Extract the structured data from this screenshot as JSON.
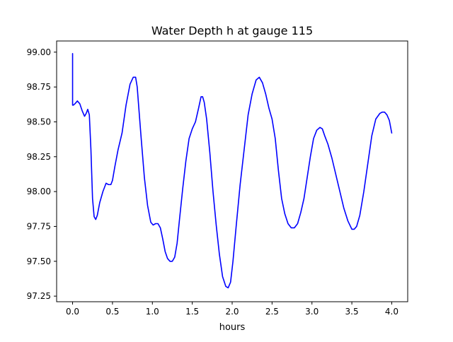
{
  "chart_data": {
    "type": "line",
    "title": "Water Depth h at gauge 115",
    "xlabel": "hours",
    "ylabel": "",
    "xlim": [
      -0.2,
      4.2
    ],
    "ylim": [
      97.21,
      99.08
    ],
    "grid": false,
    "x_ticks": [
      0.0,
      0.5,
      1.0,
      1.5,
      2.0,
      2.5,
      3.0,
      3.5,
      4.0
    ],
    "x_tick_labels": [
      "0.0",
      "0.5",
      "1.0",
      "1.5",
      "2.0",
      "2.5",
      "3.0",
      "3.5",
      "4.0"
    ],
    "y_ticks": [
      97.25,
      97.5,
      97.75,
      98.0,
      98.25,
      98.5,
      98.75,
      99.0
    ],
    "y_tick_labels": [
      "97.25",
      "97.50",
      "97.75",
      "98.00",
      "98.25",
      "98.50",
      "98.75",
      "99.00"
    ],
    "line_color": "#0000ff",
    "series": [
      {
        "x": [
          0.0,
          0.0,
          0.01,
          0.03,
          0.06,
          0.09,
          0.12,
          0.15,
          0.17,
          0.19,
          0.21,
          0.23,
          0.25,
          0.27,
          0.29,
          0.31,
          0.34,
          0.38,
          0.42,
          0.45,
          0.48,
          0.5,
          0.53,
          0.57,
          0.62,
          0.67,
          0.72,
          0.76,
          0.79,
          0.81,
          0.83,
          0.86,
          0.9,
          0.94,
          0.98,
          1.01,
          1.04,
          1.07,
          1.1,
          1.13,
          1.16,
          1.19,
          1.22,
          1.25,
          1.28,
          1.31,
          1.34,
          1.38,
          1.42,
          1.46,
          1.5,
          1.54,
          1.58,
          1.61,
          1.63,
          1.65,
          1.68,
          1.72,
          1.76,
          1.8,
          1.84,
          1.88,
          1.92,
          1.95,
          1.98,
          2.01,
          2.05,
          2.1,
          2.15,
          2.2,
          2.25,
          2.3,
          2.34,
          2.38,
          2.42,
          2.46,
          2.5,
          2.54,
          2.58,
          2.62,
          2.66,
          2.7,
          2.74,
          2.78,
          2.82,
          2.86,
          2.9,
          2.94,
          2.98,
          3.02,
          3.06,
          3.1,
          3.13,
          3.16,
          3.2,
          3.25,
          3.3,
          3.35,
          3.4,
          3.45,
          3.5,
          3.53,
          3.56,
          3.6,
          3.65,
          3.7,
          3.75,
          3.8,
          3.85,
          3.88,
          3.91,
          3.94,
          3.97,
          4.0
        ],
        "values": [
          98.99,
          98.62,
          98.62,
          98.63,
          98.65,
          98.63,
          98.58,
          98.54,
          98.56,
          98.59,
          98.55,
          98.3,
          97.95,
          97.82,
          97.8,
          97.83,
          97.92,
          98.0,
          98.06,
          98.05,
          98.05,
          98.08,
          98.18,
          98.3,
          98.42,
          98.62,
          98.77,
          98.82,
          98.82,
          98.75,
          98.6,
          98.38,
          98.1,
          97.9,
          97.78,
          97.76,
          97.77,
          97.77,
          97.74,
          97.66,
          97.57,
          97.52,
          97.5,
          97.5,
          97.53,
          97.63,
          97.8,
          98.02,
          98.22,
          98.38,
          98.45,
          98.5,
          98.6,
          98.68,
          98.68,
          98.64,
          98.52,
          98.28,
          98.0,
          97.76,
          97.55,
          97.39,
          97.32,
          97.31,
          97.35,
          97.5,
          97.75,
          98.05,
          98.3,
          98.55,
          98.7,
          98.8,
          98.82,
          98.78,
          98.7,
          98.6,
          98.52,
          98.38,
          98.15,
          97.95,
          97.84,
          97.77,
          97.74,
          97.74,
          97.77,
          97.85,
          97.95,
          98.1,
          98.25,
          98.38,
          98.44,
          98.46,
          98.45,
          98.4,
          98.34,
          98.24,
          98.12,
          98.0,
          97.88,
          97.79,
          97.73,
          97.73,
          97.75,
          97.83,
          98.0,
          98.2,
          98.4,
          98.52,
          98.56,
          98.57,
          98.57,
          98.55,
          98.51,
          98.42
        ]
      }
    ]
  }
}
